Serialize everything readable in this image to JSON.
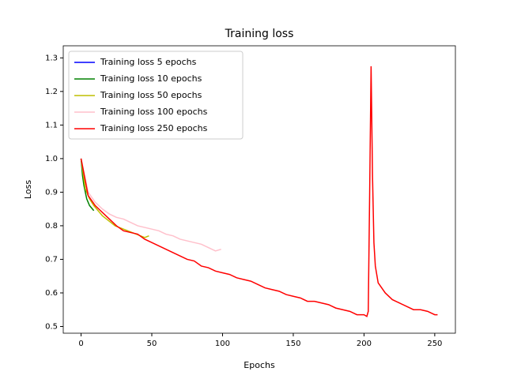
{
  "chart_data": {
    "type": "line",
    "title": "Training loss",
    "x_label": "Epochs",
    "y_label": "Loss",
    "xlim": [
      -12.6,
      264.6
    ],
    "ylim": [
      0.48,
      1.336
    ],
    "xticks": [
      0,
      50,
      100,
      150,
      200,
      250
    ],
    "yticks": [
      0.5,
      0.6,
      0.7,
      0.8,
      0.9,
      {
        "value": 1,
        "label": "1.0"
      },
      1.1,
      1.2,
      1.3
    ],
    "legend": "upper left",
    "grid": false,
    "series": [
      {
        "name": "Training loss 5 epochs",
        "color": "#0000ff",
        "x": [
          0,
          1,
          2,
          3,
          4
        ],
        "values": [
          1.0,
          0.97,
          0.93,
          0.91,
          0.9
        ]
      },
      {
        "name": "Training loss 10 epochs",
        "color": "#008000",
        "x": [
          0,
          1,
          2,
          3,
          4,
          5,
          6,
          7,
          8,
          9
        ],
        "values": [
          1.0,
          0.95,
          0.92,
          0.9,
          0.88,
          0.87,
          0.86,
          0.855,
          0.85,
          0.845
        ]
      },
      {
        "name": "Training loss 50 epochs",
        "color": "#bfbf00",
        "x": [
          0,
          3,
          6,
          9,
          12,
          15,
          18,
          21,
          24,
          27,
          30,
          33,
          36,
          39,
          42,
          45,
          48
        ],
        "values": [
          1.0,
          0.91,
          0.88,
          0.86,
          0.845,
          0.83,
          0.82,
          0.81,
          0.8,
          0.795,
          0.79,
          0.785,
          0.78,
          0.775,
          0.77,
          0.765,
          0.77
        ]
      },
      {
        "name": "Training loss 100 epochs",
        "color": "#ffc0cb",
        "x": [
          0,
          5,
          10,
          15,
          20,
          25,
          30,
          35,
          40,
          45,
          50,
          55,
          60,
          65,
          70,
          75,
          80,
          85,
          90,
          95,
          99
        ],
        "values": [
          1.0,
          0.9,
          0.87,
          0.85,
          0.835,
          0.825,
          0.82,
          0.81,
          0.8,
          0.795,
          0.79,
          0.785,
          0.775,
          0.77,
          0.76,
          0.755,
          0.75,
          0.745,
          0.735,
          0.725,
          0.73
        ]
      },
      {
        "name": "Training loss 250 epochs",
        "color": "#ff0000",
        "x": [
          0,
          5,
          10,
          15,
          20,
          25,
          30,
          35,
          40,
          45,
          50,
          55,
          60,
          65,
          70,
          75,
          80,
          85,
          90,
          95,
          100,
          105,
          110,
          115,
          120,
          125,
          130,
          135,
          140,
          145,
          150,
          155,
          160,
          165,
          170,
          175,
          180,
          185,
          190,
          195,
          200,
          202,
          203,
          204,
          205,
          206,
          207,
          208,
          210,
          215,
          220,
          225,
          230,
          235,
          240,
          245,
          250,
          252
        ],
        "values": [
          1.0,
          0.89,
          0.86,
          0.84,
          0.82,
          0.8,
          0.785,
          0.78,
          0.775,
          0.76,
          0.75,
          0.74,
          0.73,
          0.72,
          0.71,
          0.7,
          0.695,
          0.68,
          0.675,
          0.665,
          0.66,
          0.655,
          0.645,
          0.64,
          0.635,
          0.625,
          0.615,
          0.61,
          0.605,
          0.595,
          0.59,
          0.585,
          0.575,
          0.575,
          0.57,
          0.565,
          0.555,
          0.55,
          0.545,
          0.535,
          0.535,
          0.53,
          0.545,
          0.9,
          1.275,
          0.95,
          0.75,
          0.68,
          0.63,
          0.6,
          0.58,
          0.57,
          0.56,
          0.55,
          0.55,
          0.545,
          0.535,
          0.535
        ]
      }
    ]
  }
}
